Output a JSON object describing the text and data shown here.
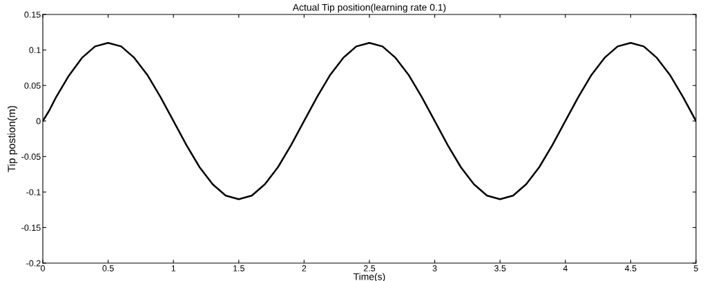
{
  "chart_data": {
    "type": "line",
    "title": "Actual Tip position(learning rate 0.1)",
    "xlabel": "Time(s)",
    "ylabel": "Tip postion(m)",
    "x": [
      0,
      0.05,
      0.1,
      0.2,
      0.3,
      0.4,
      0.5,
      0.6,
      0.7,
      0.8,
      0.9,
      1.0,
      1.1,
      1.2,
      1.3,
      1.4,
      1.5,
      1.6,
      1.7,
      1.8,
      1.9,
      2.0,
      2.1,
      2.2,
      2.3,
      2.4,
      2.5,
      2.6,
      2.7,
      2.8,
      2.9,
      3.0,
      3.1,
      3.2,
      3.3,
      3.4,
      3.5,
      3.6,
      3.7,
      3.8,
      3.9,
      4.0,
      4.1,
      4.2,
      4.3,
      4.4,
      4.5,
      4.6,
      4.7,
      4.8,
      4.9,
      5.0
    ],
    "series": [
      {
        "color": "#000000",
        "values": [
          0,
          0.015,
          0.033,
          0.064,
          0.089,
          0.105,
          0.11,
          0.105,
          0.089,
          0.065,
          0.034,
          0,
          -0.034,
          -0.065,
          -0.089,
          -0.105,
          -0.11,
          -0.105,
          -0.089,
          -0.065,
          -0.034,
          0,
          0.034,
          0.065,
          0.089,
          0.105,
          0.11,
          0.105,
          0.089,
          0.065,
          0.034,
          0,
          -0.034,
          -0.065,
          -0.089,
          -0.105,
          -0.11,
          -0.105,
          -0.089,
          -0.065,
          -0.034,
          0,
          0.034,
          0.065,
          0.089,
          0.105,
          0.11,
          0.105,
          0.089,
          0.065,
          0.034,
          0
        ]
      }
    ],
    "xlim": [
      0,
      5
    ],
    "xticks": [
      0,
      0.5,
      1,
      1.5,
      2,
      2.5,
      3,
      3.5,
      4,
      4.5,
      5
    ],
    "ylim": [
      -0.2,
      0.15
    ],
    "yticks": [
      -0.2,
      -0.15,
      -0.1,
      -0.05,
      0,
      0.05,
      0.1,
      0.15
    ],
    "grid": false,
    "legend": false,
    "line_style": "solid",
    "marker": "none"
  }
}
